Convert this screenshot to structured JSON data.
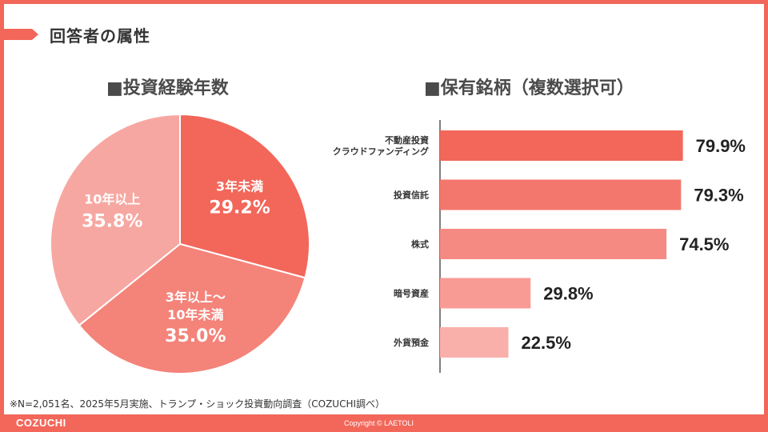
{
  "page": {
    "title": "回答者の属性",
    "footnote": "※N=2,051名、2025年5月実施、トランプ・ショック投資動向調査（COZUCHI調べ）"
  },
  "footer": {
    "brand": "COZUCHI",
    "copyright": "Copyright © LAETOLI"
  },
  "colors": {
    "accent": "#f2675a"
  },
  "chart_data": [
    {
      "type": "pie",
      "title": "■投資経験年数",
      "unit": "%",
      "slices": [
        {
          "label": "3年未満",
          "value": 29.2,
          "display": "29.2%",
          "color": "#f2675a"
        },
        {
          "label": "3年以上～\n10年未満",
          "value": 35.0,
          "display": "35.0%",
          "color": "#f4837a"
        },
        {
          "label": "10年以上",
          "value": 35.8,
          "display": "35.8%",
          "color": "#f7a7a1"
        }
      ]
    },
    {
      "type": "bar",
      "orientation": "horizontal",
      "title": "■保有銘柄（複数選択可）",
      "unit": "%",
      "xlim": [
        0,
        100
      ],
      "categories": [
        "不動産投資\nクラウドファンディング",
        "投資信託",
        "株式",
        "暗号資産",
        "外貨預金"
      ],
      "values": [
        79.9,
        79.3,
        74.5,
        29.8,
        22.5
      ],
      "value_labels": [
        "79.9%",
        "79.3%",
        "74.5%",
        "29.8%",
        "22.5%"
      ],
      "colors": [
        "#f2675a",
        "#f4776d",
        "#f58a82",
        "#f79b94",
        "#f9b0ab"
      ]
    }
  ]
}
